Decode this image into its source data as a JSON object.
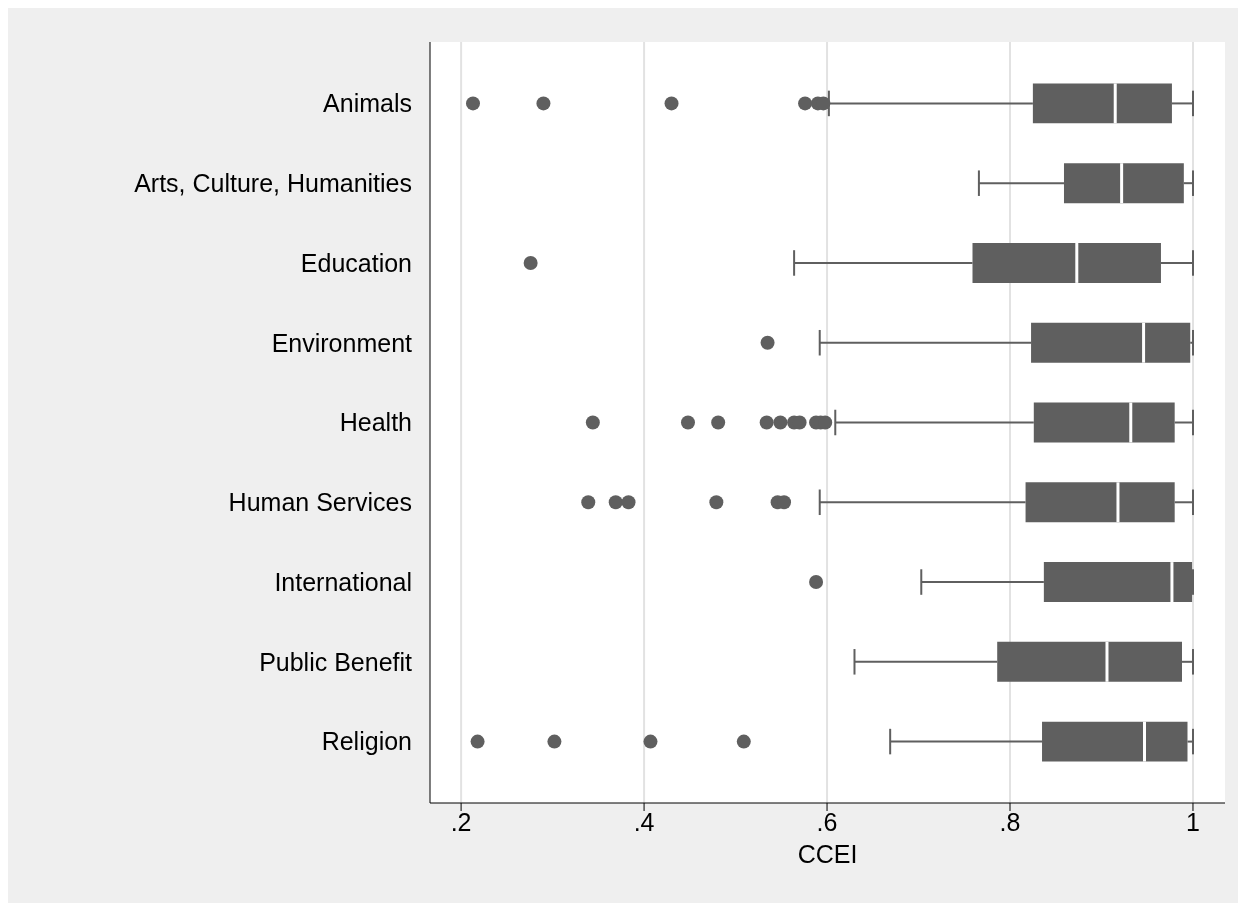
{
  "chart_data": {
    "type": "box",
    "orientation": "horizontal",
    "xlabel": "CCEI",
    "color": "#5f5f5f",
    "grid": "x",
    "categories": [
      "Animals",
      "Arts, Culture, Humanities",
      "Education",
      "Environment",
      "Health",
      "Human Services",
      "International",
      "Public Benefit",
      "Religion"
    ],
    "boxes": [
      {
        "low": 0.602,
        "q1": 0.825,
        "median": 0.915,
        "q3": 0.977,
        "high": 1.0,
        "outliers": [
          0.213,
          0.29,
          0.43,
          0.576,
          0.59,
          0.596
        ]
      },
      {
        "low": 0.766,
        "q1": 0.859,
        "median": 0.922,
        "q3": 0.99,
        "high": 1.0
      },
      {
        "low": 0.564,
        "q1": 0.759,
        "median": 0.873,
        "q3": 0.965,
        "high": 1.0,
        "outliers": [
          0.276
        ]
      },
      {
        "low": 0.592,
        "q1": 0.823,
        "median": 0.946,
        "q3": 0.997,
        "high": 1.0,
        "outliers": [
          0.535
        ]
      },
      {
        "low": 0.609,
        "q1": 0.826,
        "median": 0.932,
        "q3": 0.98,
        "high": 1.0,
        "outliers": [
          0.344,
          0.448,
          0.481,
          0.534,
          0.549,
          0.564,
          0.57,
          0.588,
          0.593,
          0.598
        ]
      },
      {
        "low": 0.592,
        "q1": 0.817,
        "median": 0.918,
        "q3": 0.98,
        "high": 1.0,
        "outliers": [
          0.339,
          0.369,
          0.383,
          0.479,
          0.546,
          0.553
        ]
      },
      {
        "low": 0.703,
        "q1": 0.837,
        "median": 0.977,
        "q3": 0.999,
        "high": 1.0,
        "outliers": [
          0.588
        ]
      },
      {
        "low": 0.63,
        "q1": 0.786,
        "median": 0.906,
        "q3": 0.988,
        "high": 1.0
      },
      {
        "low": 0.669,
        "q1": 0.835,
        "median": 0.947,
        "q3": 0.994,
        "high": 1.0,
        "outliers": [
          0.218,
          0.302,
          0.407,
          0.509
        ]
      }
    ],
    "xlim": [
      0.166,
      1.035
    ],
    "xticks": [
      {
        "value": 0.2,
        "label": ".2"
      },
      {
        "value": 0.4,
        "label": ".4"
      },
      {
        "value": 0.6,
        "label": ".6"
      },
      {
        "value": 0.8,
        "label": ".8"
      },
      1
    ]
  }
}
